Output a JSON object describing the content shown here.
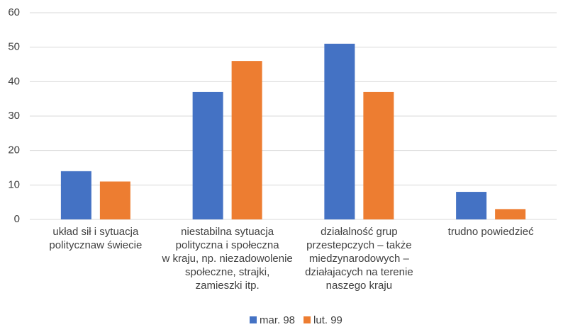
{
  "chart_data": {
    "type": "bar",
    "categories": [
      "układ sił i sytuacja\npolitycznaw świecie",
      "niestabilna sytuacja\npolityczna i społeczna\nw kraju, np. niezadowolenie\nspołeczne, strajki,\nzamieszki  itp.",
      "działalność grup\nprzestepczych – także\nmiedzynarodowych –\ndziałajacych na terenie\nnaszego kraju",
      "trudno powiedzieć"
    ],
    "series": [
      {
        "name": "mar. 98",
        "color": "#4472c4",
        "values": [
          14,
          37,
          51,
          8
        ]
      },
      {
        "name": "lut. 99",
        "color": "#ed7d31",
        "values": [
          11,
          46,
          37,
          3
        ]
      }
    ],
    "ylim": [
      0,
      60
    ],
    "yticks": [
      0,
      10,
      20,
      30,
      40,
      50,
      60
    ],
    "grid": true,
    "legend": "bottom"
  }
}
